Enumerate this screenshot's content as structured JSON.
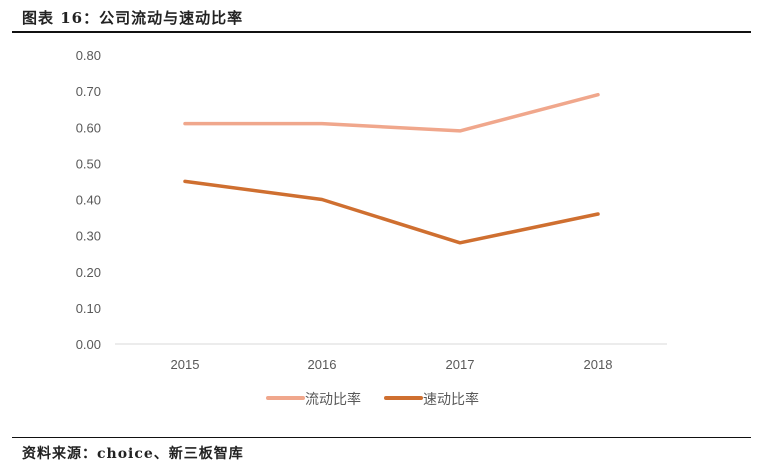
{
  "header": {
    "title": "图表 16：公司流动与速动比率"
  },
  "footer": {
    "source": "资料来源：choice、新三板智库"
  },
  "colors": {
    "current_ratio": "#F0A78C",
    "quick_ratio": "#CF6F30",
    "axis": "#D9D9D9"
  },
  "chart_data": {
    "type": "line",
    "title": "公司流动与速动比率",
    "categories": [
      "2015",
      "2016",
      "2017",
      "2018"
    ],
    "series": [
      {
        "name": "流动比率",
        "values": [
          0.61,
          0.61,
          0.59,
          0.69
        ]
      },
      {
        "name": "速动比率",
        "values": [
          0.45,
          0.4,
          0.28,
          0.36
        ]
      }
    ],
    "yticks": [
      "0.00",
      "0.10",
      "0.20",
      "0.30",
      "0.40",
      "0.50",
      "0.60",
      "0.70",
      "0.80"
    ],
    "ylim": [
      0,
      0.8
    ],
    "xlabel": "",
    "ylabel": "",
    "grid": false,
    "legend_position": "bottom"
  }
}
